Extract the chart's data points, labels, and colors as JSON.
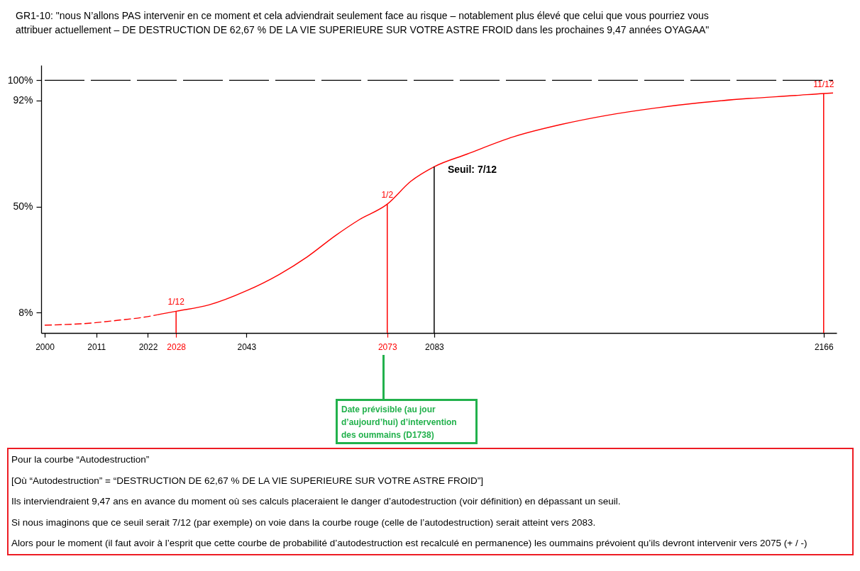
{
  "chart_data": {
    "type": "line",
    "title": "GR1-10: \"nous N’allons PAS intervenir en ce moment et cela adviendrait seulement face au risque – notablement plus élevé que celui que vous pourriez vous attribuer actuellement – DE DESTRUCTION DE 62,67 % DE LA VIE SUPERIEURE SUR VOTRE ASTRE FROID dans les prochaines 9,47 années OYAGAA\"",
    "series": [
      {
        "color": "#ff0000",
        "line_style": "dashed",
        "x": [
          2000,
          2009,
          2016,
          2021,
          2024
        ],
        "values": [
          3.1,
          3.8,
          5.1,
          6.2,
          7.2
        ]
      },
      {
        "color": "#ff0000",
        "x": [
          2024,
          2028,
          2035,
          2043,
          2050,
          2056,
          2062,
          2067,
          2073,
          2078,
          2083,
          2090,
          2100,
          2110,
          2120,
          2130,
          2140,
          2150,
          2160,
          2166,
          2168
        ],
        "values": [
          7.2,
          8.6,
          11.1,
          16.7,
          23.2,
          30.2,
          38.6,
          44.8,
          51.0,
          60.0,
          65.8,
          70.8,
          77.7,
          82.5,
          86.2,
          89.0,
          91.2,
          92.8,
          94.0,
          94.8,
          95.0
        ]
      },
      {
        "type": "bar",
        "color": "#ff0000",
        "x": [
          2028,
          2073,
          2166
        ],
        "values": [
          8.6,
          51.0,
          94.8
        ]
      },
      {
        "type": "bar",
        "color": "#000000",
        "x": [
          2083
        ],
        "values": [
          65.8
        ]
      }
    ],
    "xlim": [
      2000,
      2168
    ],
    "xticks": [
      2000,
      2011,
      2022,
      {
        "value": 2028,
        "label": "2028"
      },
      2043,
      {
        "value": 2073,
        "label": "2073"
      },
      2083,
      2166
    ],
    "ylim": [
      0,
      106
    ],
    "yticks": [
      {
        "value": 8,
        "label": "8%"
      },
      {
        "value": 50,
        "label": "50%"
      },
      {
        "value": 92,
        "label": "92%"
      },
      {
        "value": 100,
        "label": "100%"
      }
    ],
    "ref_lines": [
      {
        "axis": "y",
        "value": 100,
        "color": "#000000",
        "line_style": "dashed"
      }
    ],
    "annotations": [
      {
        "text": "1/12",
        "x": 2028,
        "y": 8.6
      },
      {
        "text": "1/2",
        "x": 2073,
        "y": 51.0
      },
      {
        "text": "Seuil: 7/12",
        "x": 2083,
        "y": 65.8
      },
      {
        "text": "11/12",
        "x": 2166,
        "y": 94.8
      },
      "Date prévisible (au jour d’aujourd’hui) d’intervention des oummains (D1738)",
      "Pour la courbe “Autodestruction”",
      "[Où “Autodestruction” = “DESTRUCTION DE 62,67 % DE LA VIE SUPERIEURE SUR VOTRE ASTRE FROID”]",
      "Ils interviendraient 9,47 ans en avance du moment où ses calculs placeraient le danger d’autodestruction (voir définition) en dépassant un seuil.",
      "Si nous imaginons que ce seuil serait 7/12 (par exemple) on voie dans la courbe rouge (celle de l’autodestruction) serait atteint vers 2083.",
      "Alors pour le moment (il faut avoir à l’esprit que cette courbe de probabilité d’autodestruction est recalculé en permanence) les oummains prévoient qu’ils devront intervenir vers 2075 (+ / -)"
    ]
  }
}
